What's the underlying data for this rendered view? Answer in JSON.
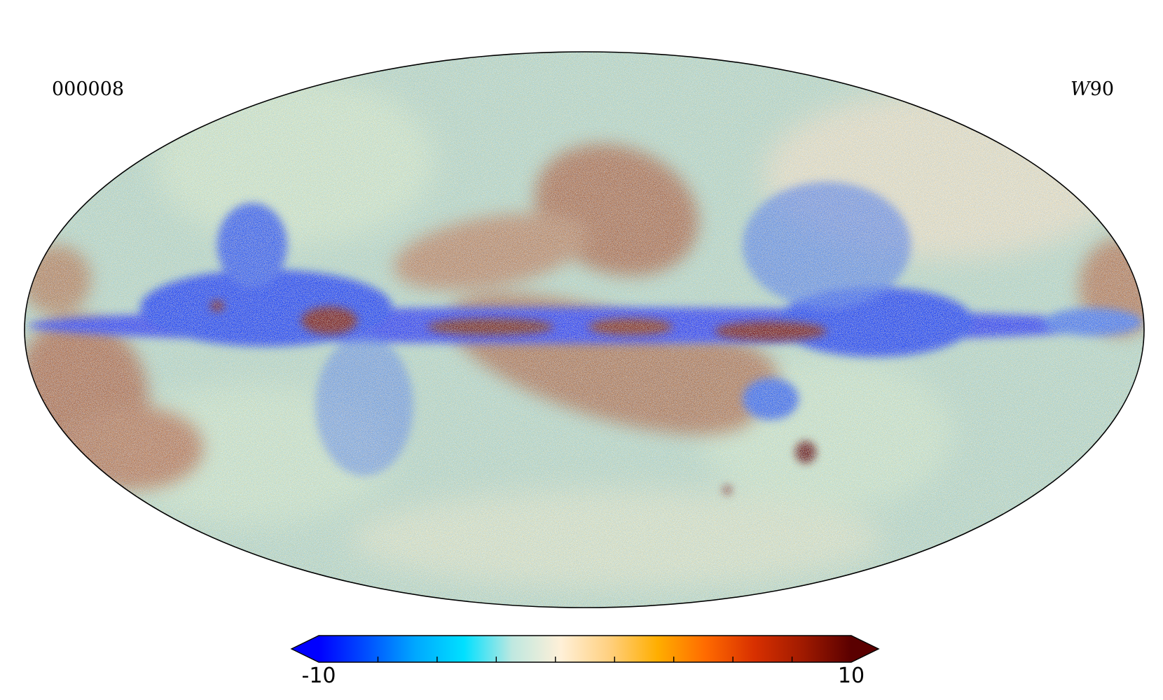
{
  "labels": {
    "left": "000008",
    "right_italic": "W",
    "right_plain": "90"
  },
  "projection": "mollweide",
  "colorbar": {
    "min_label": "-10",
    "max_label": "10",
    "vmin": -10,
    "vmax": 10,
    "extend": "both",
    "colormap_stops": [
      "#0000ff",
      "#0050ff",
      "#00a8ff",
      "#00e0ff",
      "#bfe8e0",
      "#fff0d8",
      "#ffd080",
      "#ffae00",
      "#ff6a00",
      "#d83000",
      "#a01a00",
      "#5a0000"
    ],
    "minor_ticks": 9
  },
  "colors": {
    "map_outline": "#000000",
    "plane_low": "#0018ff",
    "high_values": "#6a0a00",
    "background_noise": "#a8d8c8"
  }
}
